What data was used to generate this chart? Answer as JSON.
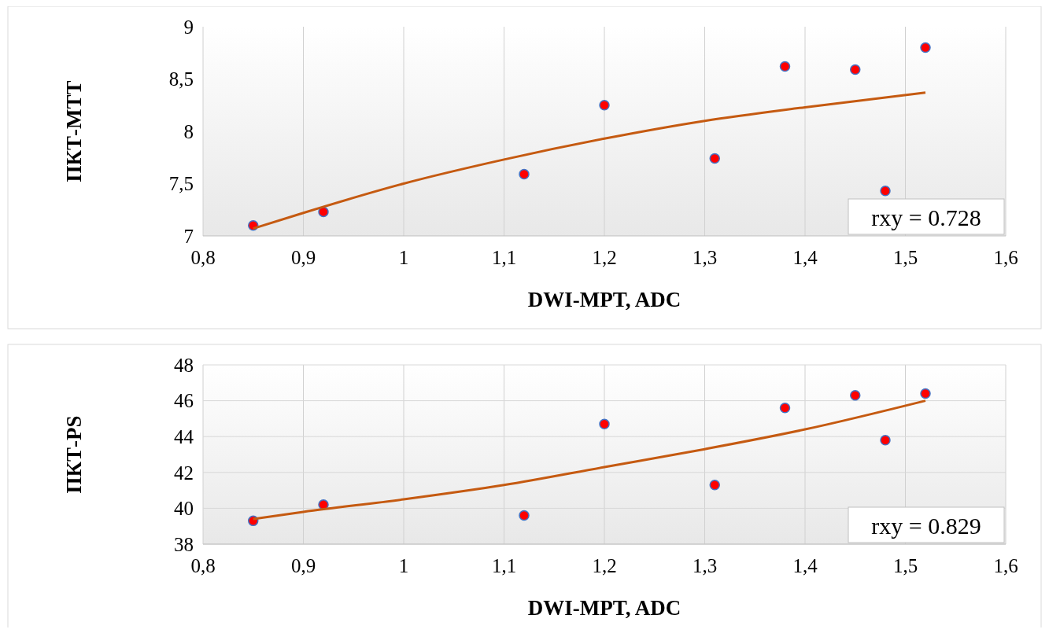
{
  "chart_data": [
    {
      "type": "scatter",
      "xlabel": "DWI-MPT, ADC",
      "ylabel": "ПКТ-МТТ",
      "marker": "circle",
      "grid": "x",
      "xlim": [
        0.8,
        1.6
      ],
      "xticks": [
        {
          "value": 0.8,
          "label": "0,8"
        },
        {
          "value": 0.9,
          "label": "0,9"
        },
        1,
        {
          "value": 1.1,
          "label": "1,1"
        },
        {
          "value": 1.2,
          "label": "1,2"
        },
        {
          "value": 1.3,
          "label": "1,3"
        },
        {
          "value": 1.4,
          "label": "1,4"
        },
        {
          "value": 1.5,
          "label": "1,5"
        },
        {
          "value": 1.6,
          "label": "1,6"
        }
      ],
      "ylim": [
        7,
        9
      ],
      "yticks": [
        7,
        {
          "value": 7.5,
          "label": "7,5"
        },
        8,
        {
          "value": 8.5,
          "label": "8,5"
        },
        9
      ],
      "annotations": [
        "rxy = 0.728"
      ],
      "series": [
        {
          "color": "#ff0000",
          "x": [
            0.85,
            0.92,
            1.12,
            1.2,
            1.31,
            1.38,
            1.45,
            1.48,
            1.52
          ],
          "values": [
            7.1,
            7.23,
            7.59,
            8.25,
            7.74,
            8.62,
            8.59,
            7.43,
            8.8
          ]
        },
        {
          "type": "line",
          "color": "#c55a11",
          "marker": "none",
          "x": [
            0.85,
            0.9,
            1.0,
            1.1,
            1.2,
            1.3,
            1.4,
            1.52
          ],
          "values": [
            7.07,
            7.22,
            7.5,
            7.73,
            7.93,
            8.1,
            8.23,
            8.37
          ]
        }
      ]
    },
    {
      "type": "scatter",
      "xlabel": "DWI-MPT, ADC",
      "ylabel": "ПКТ-PS",
      "marker": "circle",
      "grid": true,
      "xlim": [
        0.8,
        1.6
      ],
      "xticks": [
        {
          "value": 0.8,
          "label": "0,8"
        },
        {
          "value": 0.9,
          "label": "0,9"
        },
        1,
        {
          "value": 1.1,
          "label": "1,1"
        },
        {
          "value": 1.2,
          "label": "1,2"
        },
        {
          "value": 1.3,
          "label": "1,3"
        },
        {
          "value": 1.4,
          "label": "1,4"
        },
        {
          "value": 1.5,
          "label": "1,5"
        },
        {
          "value": 1.6,
          "label": "1,6"
        }
      ],
      "ylim": [
        38,
        48
      ],
      "yticks": [
        38,
        40,
        42,
        44,
        46,
        48
      ],
      "annotations": [
        "rxy = 0.829"
      ],
      "series": [
        {
          "color": "#ff0000",
          "x": [
            0.85,
            0.92,
            1.12,
            1.2,
            1.31,
            1.38,
            1.45,
            1.48,
            1.52
          ],
          "values": [
            39.3,
            40.2,
            39.6,
            44.7,
            41.3,
            45.6,
            46.3,
            43.8,
            46.4
          ]
        },
        {
          "type": "line",
          "color": "#c55a11",
          "marker": "none",
          "x": [
            0.85,
            0.9,
            1.0,
            1.1,
            1.2,
            1.3,
            1.4,
            1.52
          ],
          "values": [
            39.4,
            39.8,
            40.5,
            41.3,
            42.3,
            43.3,
            44.4,
            46.0
          ]
        }
      ]
    }
  ]
}
